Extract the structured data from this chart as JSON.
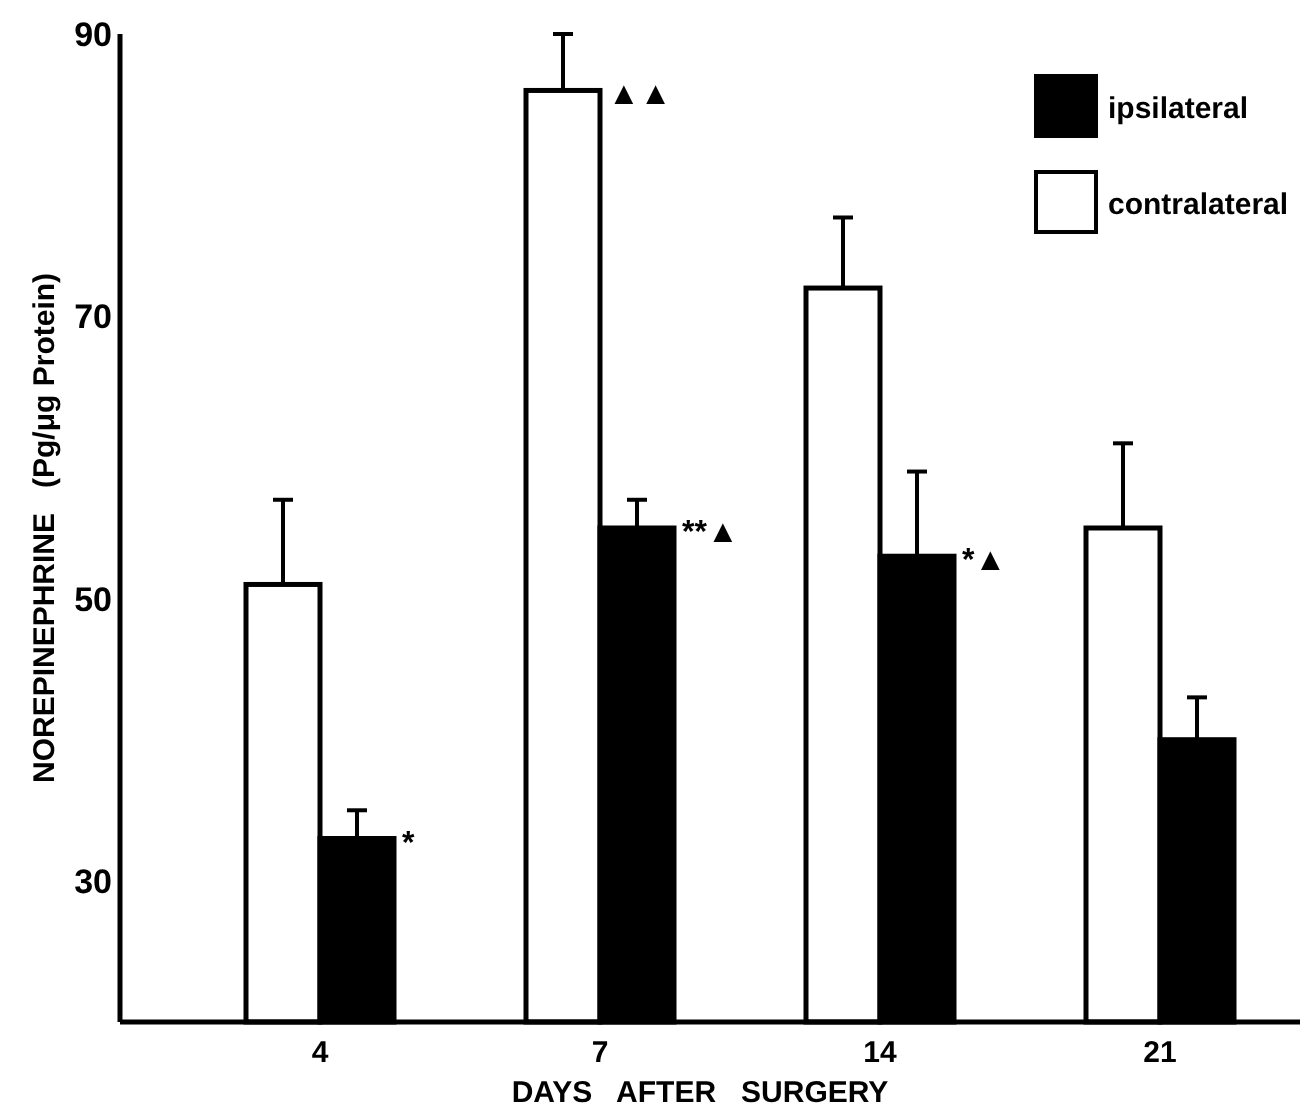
{
  "chart_data": {
    "type": "bar",
    "xlabel": "DAYS   AFTER   SURGERY",
    "ylabel": "NOREPINEPHRINE   (Pg/μg Protein)",
    "categories": [
      "4",
      "7",
      "14",
      "21"
    ],
    "series": [
      {
        "name": "contralateral",
        "color": "#ffffff",
        "values": [
          51,
          86,
          72,
          55
        ],
        "errors": [
          [
            51,
            57
          ],
          [
            86,
            90
          ],
          [
            72,
            77
          ],
          [
            55,
            61
          ]
        ]
      },
      {
        "name": "ipsilateral",
        "color": "#000000",
        "values": [
          33,
          55,
          53,
          40
        ],
        "errors": [
          [
            33,
            35
          ],
          [
            55,
            57
          ],
          [
            53,
            59
          ],
          [
            40,
            43
          ]
        ]
      }
    ],
    "ylim": [
      20,
      90
    ],
    "yticks": [
      30,
      50,
      70,
      90
    ],
    "grid": false,
    "legend": "top right",
    "annotations": [
      {
        "text": "*",
        "x": "4",
        "y": 33
      },
      {
        "text": "▲▲",
        "x": "7",
        "y": 86
      },
      {
        "text": "**▲",
        "x": "7",
        "y": 55
      },
      {
        "text": "*▲",
        "x": "14",
        "y": 53
      }
    ]
  }
}
